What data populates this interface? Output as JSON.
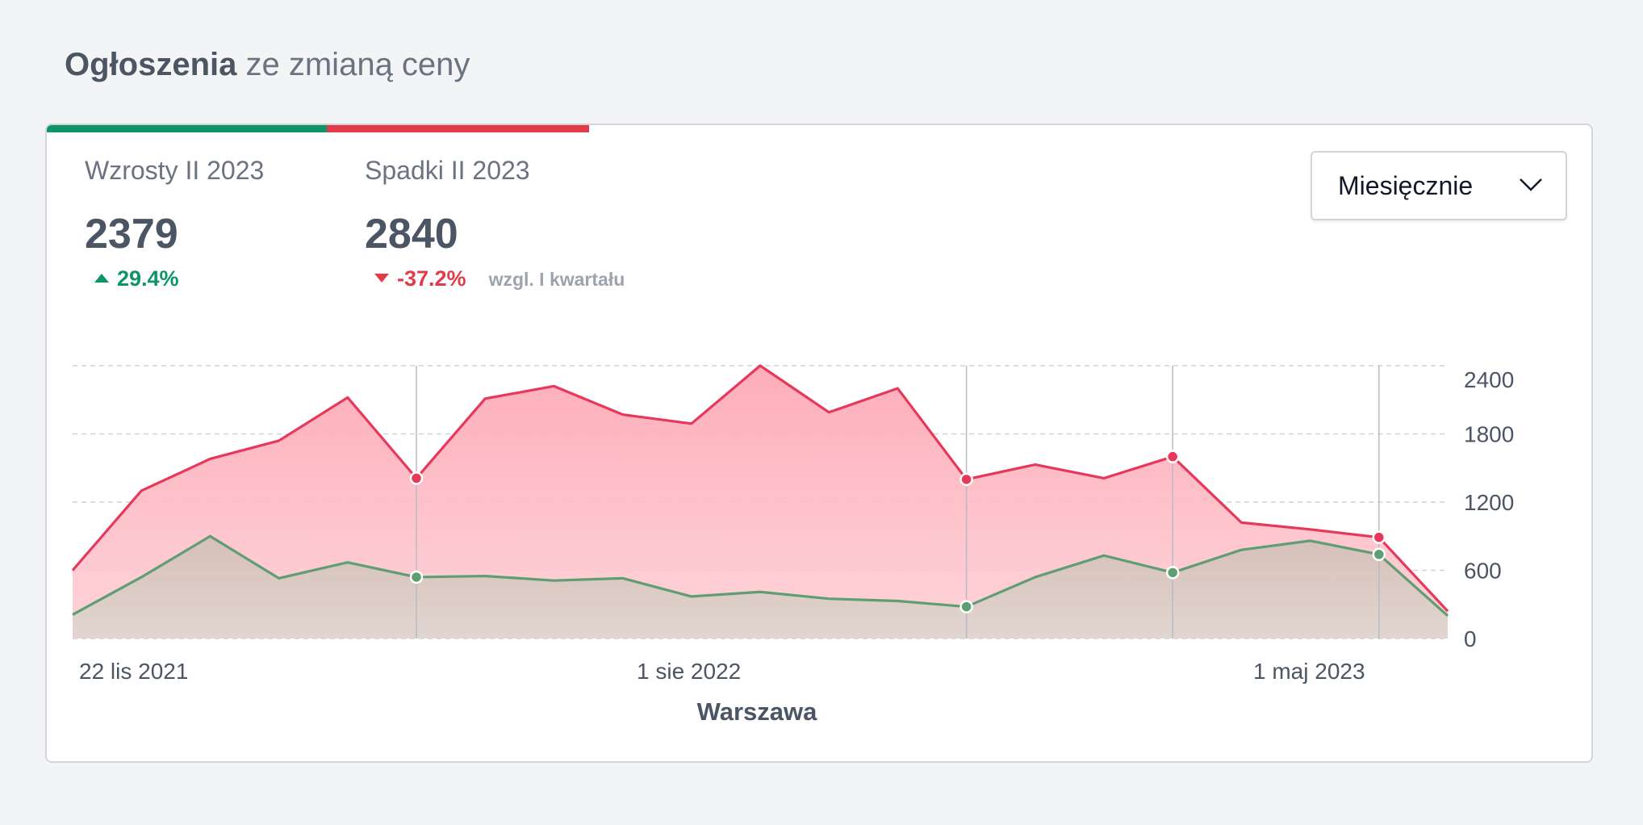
{
  "header": {
    "title_bold": "Ogłoszenia",
    "title_rest": " ze zmianą ceny"
  },
  "colors": {
    "up": "#0f9466",
    "down": "#e23b4a",
    "up_line": "#5f9e73",
    "down_line": "#e8385a"
  },
  "stats": {
    "up": {
      "label": "Wzrosty II 2023",
      "value": "2379",
      "change": "29.4%"
    },
    "down": {
      "label": "Spadki II 2023",
      "value": "2840",
      "change": "-37.2%",
      "note": "wzgl. I kwartału"
    }
  },
  "period_select": {
    "value": "Miesięcznie"
  },
  "chart_data": {
    "type": "area",
    "xlabel": "Warszawa",
    "x_tick_labels": [
      "22 lis 2021",
      "1 sie 2022",
      "1 maj 2023"
    ],
    "y_ticks": [
      0,
      600,
      1200,
      1800,
      2400
    ],
    "ylim": [
      0,
      2400
    ],
    "axis_side": "right",
    "grid": true,
    "x": [
      "2021-11-22",
      "2021-12",
      "2022-01",
      "2022-02",
      "2022-03",
      "2022-04",
      "2022-05",
      "2022-06",
      "2022-07",
      "2022-08",
      "2022-09",
      "2022-10",
      "2022-11",
      "2022-12",
      "2023-01",
      "2023-02",
      "2023-03",
      "2023-04",
      "2023-05",
      "2023-06",
      "2023-07"
    ],
    "series": [
      {
        "values": [
          600,
          1300,
          1580,
          1740,
          2120,
          1410,
          2110,
          2220,
          1970,
          1890,
          2400,
          1990,
          2200,
          1400,
          1530,
          1410,
          1600,
          1020,
          960,
          890,
          240
        ]
      },
      {
        "values": [
          210,
          540,
          900,
          530,
          670,
          540,
          550,
          510,
          530,
          370,
          410,
          350,
          330,
          280,
          540,
          730,
          580,
          780,
          860,
          740,
          200
        ]
      }
    ],
    "highlight_indices": [
      5,
      13,
      16,
      19
    ]
  }
}
